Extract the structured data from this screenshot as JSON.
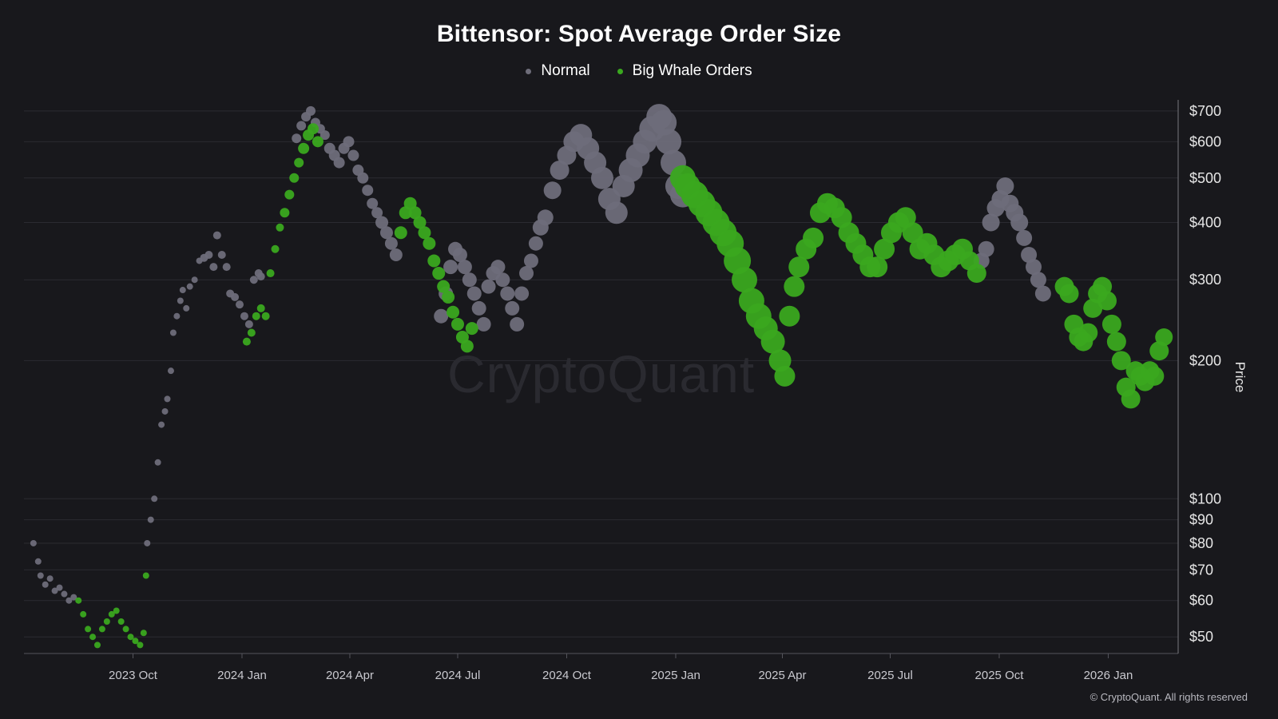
{
  "colors": {
    "background": "#18181c",
    "normal": "#6e6d7a",
    "whale": "#3aa81f",
    "grid": "#2b2b31",
    "axis_text": "#e6e6e6"
  },
  "watermark": "CryptoQuant",
  "copyright": "© CryptoQuant. All rights reserved",
  "chart_data": {
    "type": "scatter",
    "title": "Bittensor: Spot Average Order Size",
    "ylabel": "Price",
    "yscale": "log",
    "ylim": [
      46,
      740
    ],
    "legend": [
      {
        "name": "Normal",
        "color": "#6e6d7a"
      },
      {
        "name": "Big Whale Orders",
        "color": "#3aa81f"
      }
    ],
    "x_ticks": [
      {
        "label": "2023 Oct",
        "day": 92
      },
      {
        "label": "2024 Jan",
        "day": 184
      },
      {
        "label": "2024 Apr",
        "day": 275
      },
      {
        "label": "2024 Jul",
        "day": 366
      },
      {
        "label": "2024 Oct",
        "day": 458
      },
      {
        "label": "2025 Jan",
        "day": 550
      },
      {
        "label": "2025 Apr",
        "day": 640
      },
      {
        "label": "2025 Jul",
        "day": 731
      },
      {
        "label": "2025 Oct",
        "day": 823
      },
      {
        "label": "2026 Jan",
        "day": 915
      }
    ],
    "x_range_days": [
      0,
      974
    ],
    "y_ticks": [
      {
        "label": "$700",
        "value": 700
      },
      {
        "label": "$600",
        "value": 600
      },
      {
        "label": "$500",
        "value": 500
      },
      {
        "label": "$400",
        "value": 400
      },
      {
        "label": "$300",
        "value": 300
      },
      {
        "label": "$200",
        "value": 200
      },
      {
        "label": "$100",
        "value": 100
      },
      {
        "label": "$90",
        "value": 90
      },
      {
        "label": "$80",
        "value": 80
      },
      {
        "label": "$70",
        "value": 70
      },
      {
        "label": "$60",
        "value": 60
      },
      {
        "label": "$50",
        "value": 50
      }
    ],
    "series": [
      {
        "name": "Normal",
        "points": [
          [
            8,
            80,
            4
          ],
          [
            12,
            73,
            4
          ],
          [
            14,
            68,
            4
          ],
          [
            18,
            65,
            4
          ],
          [
            22,
            67,
            4
          ],
          [
            26,
            63,
            4
          ],
          [
            30,
            64,
            4
          ],
          [
            34,
            62,
            4
          ],
          [
            38,
            60,
            4
          ],
          [
            42,
            61,
            4
          ],
          [
            104,
            80,
            4
          ],
          [
            107,
            90,
            4
          ],
          [
            110,
            100,
            4
          ],
          [
            113,
            120,
            4
          ],
          [
            116,
            145,
            4
          ],
          [
            119,
            155,
            4
          ],
          [
            121,
            165,
            4
          ],
          [
            124,
            190,
            4
          ],
          [
            126,
            230,
            4
          ],
          [
            129,
            250,
            4
          ],
          [
            132,
            270,
            4
          ],
          [
            134,
            285,
            4
          ],
          [
            137,
            260,
            4
          ],
          [
            140,
            290,
            4
          ],
          [
            144,
            300,
            4
          ],
          [
            148,
            330,
            4
          ],
          [
            152,
            335,
            5
          ],
          [
            156,
            340,
            5
          ],
          [
            160,
            320,
            5
          ],
          [
            163,
            375,
            5
          ],
          [
            167,
            340,
            5
          ],
          [
            171,
            320,
            5
          ],
          [
            174,
            280,
            5
          ],
          [
            178,
            275,
            5
          ],
          [
            182,
            265,
            5
          ],
          [
            186,
            250,
            5
          ],
          [
            190,
            240,
            5
          ],
          [
            194,
            300,
            5
          ],
          [
            198,
            310,
            5
          ],
          [
            200,
            305,
            5
          ],
          [
            230,
            610,
            6
          ],
          [
            234,
            650,
            6
          ],
          [
            238,
            680,
            6
          ],
          [
            242,
            700,
            6
          ],
          [
            246,
            660,
            6
          ],
          [
            250,
            640,
            6
          ],
          [
            254,
            620,
            6
          ],
          [
            258,
            580,
            7
          ],
          [
            262,
            560,
            7
          ],
          [
            266,
            540,
            7
          ],
          [
            270,
            580,
            7
          ],
          [
            274,
            600,
            7
          ],
          [
            278,
            560,
            7
          ],
          [
            282,
            520,
            7
          ],
          [
            286,
            500,
            7
          ],
          [
            290,
            470,
            7
          ],
          [
            294,
            440,
            7
          ],
          [
            298,
            420,
            7
          ],
          [
            302,
            400,
            8
          ],
          [
            306,
            380,
            8
          ],
          [
            310,
            360,
            8
          ],
          [
            314,
            340,
            8
          ],
          [
            352,
            250,
            9
          ],
          [
            356,
            280,
            9
          ],
          [
            360,
            320,
            9
          ],
          [
            364,
            350,
            9
          ],
          [
            368,
            340,
            9
          ],
          [
            372,
            320,
            9
          ],
          [
            376,
            300,
            9
          ],
          [
            380,
            280,
            9
          ],
          [
            384,
            260,
            9
          ],
          [
            388,
            240,
            9
          ],
          [
            392,
            290,
            9
          ],
          [
            396,
            310,
            9
          ],
          [
            400,
            320,
            9
          ],
          [
            404,
            300,
            9
          ],
          [
            408,
            280,
            9
          ],
          [
            412,
            260,
            9
          ],
          [
            416,
            240,
            9
          ],
          [
            420,
            280,
            9
          ],
          [
            424,
            310,
            9
          ],
          [
            428,
            330,
            9
          ],
          [
            432,
            360,
            9
          ],
          [
            436,
            390,
            10
          ],
          [
            440,
            410,
            10
          ],
          [
            446,
            470,
            11
          ],
          [
            452,
            520,
            12
          ],
          [
            458,
            560,
            12
          ],
          [
            464,
            600,
            13
          ],
          [
            470,
            620,
            14
          ],
          [
            476,
            580,
            14
          ],
          [
            482,
            540,
            14
          ],
          [
            488,
            500,
            14
          ],
          [
            494,
            450,
            14
          ],
          [
            500,
            420,
            14
          ],
          [
            506,
            480,
            14
          ],
          [
            512,
            520,
            15
          ],
          [
            518,
            560,
            15
          ],
          [
            524,
            600,
            15
          ],
          [
            530,
            640,
            16
          ],
          [
            536,
            680,
            16
          ],
          [
            540,
            660,
            16
          ],
          [
            544,
            600,
            16
          ],
          [
            548,
            540,
            16
          ],
          [
            552,
            480,
            16
          ],
          [
            556,
            460,
            16
          ],
          [
            808,
            330,
            10
          ],
          [
            812,
            350,
            10
          ],
          [
            816,
            400,
            11
          ],
          [
            820,
            430,
            11
          ],
          [
            824,
            450,
            11
          ],
          [
            828,
            480,
            11
          ],
          [
            832,
            440,
            11
          ],
          [
            836,
            420,
            11
          ],
          [
            840,
            400,
            11
          ],
          [
            844,
            370,
            10
          ],
          [
            848,
            340,
            10
          ],
          [
            852,
            320,
            10
          ],
          [
            856,
            300,
            10
          ],
          [
            860,
            280,
            10
          ]
        ]
      },
      {
        "name": "Big Whale Orders",
        "points": [
          [
            46,
            60,
            4
          ],
          [
            50,
            56,
            4
          ],
          [
            54,
            52,
            4
          ],
          [
            58,
            50,
            4
          ],
          [
            62,
            48,
            4
          ],
          [
            66,
            52,
            4
          ],
          [
            70,
            54,
            4
          ],
          [
            74,
            56,
            4
          ],
          [
            78,
            57,
            4
          ],
          [
            82,
            54,
            4
          ],
          [
            86,
            52,
            4
          ],
          [
            90,
            50,
            4
          ],
          [
            94,
            49,
            4
          ],
          [
            98,
            48,
            4
          ],
          [
            101,
            51,
            4
          ],
          [
            103,
            68,
            4
          ],
          [
            188,
            220,
            5
          ],
          [
            192,
            230,
            5
          ],
          [
            196,
            250,
            5
          ],
          [
            200,
            260,
            5
          ],
          [
            204,
            250,
            5
          ],
          [
            208,
            310,
            5
          ],
          [
            212,
            350,
            5
          ],
          [
            216,
            390,
            5
          ],
          [
            220,
            420,
            6
          ],
          [
            224,
            460,
            6
          ],
          [
            228,
            500,
            6
          ],
          [
            232,
            540,
            6
          ],
          [
            236,
            580,
            7
          ],
          [
            240,
            620,
            7
          ],
          [
            244,
            640,
            7
          ],
          [
            248,
            600,
            7
          ],
          [
            318,
            380,
            8
          ],
          [
            322,
            420,
            8
          ],
          [
            326,
            440,
            8
          ],
          [
            330,
            420,
            8
          ],
          [
            334,
            400,
            8
          ],
          [
            338,
            380,
            8
          ],
          [
            342,
            360,
            8
          ],
          [
            346,
            330,
            8
          ],
          [
            350,
            310,
            8
          ],
          [
            354,
            290,
            8
          ],
          [
            358,
            275,
            8
          ],
          [
            362,
            255,
            8
          ],
          [
            366,
            240,
            8
          ],
          [
            370,
            225,
            8
          ],
          [
            374,
            215,
            8
          ],
          [
            378,
            235,
            8
          ],
          [
            556,
            500,
            16
          ],
          [
            560,
            480,
            16
          ],
          [
            566,
            460,
            17
          ],
          [
            572,
            440,
            17
          ],
          [
            578,
            420,
            17
          ],
          [
            584,
            400,
            17
          ],
          [
            590,
            380,
            17
          ],
          [
            596,
            360,
            17
          ],
          [
            602,
            330,
            17
          ],
          [
            608,
            300,
            16
          ],
          [
            614,
            270,
            16
          ],
          [
            620,
            250,
            16
          ],
          [
            626,
            235,
            15
          ],
          [
            632,
            220,
            15
          ],
          [
            638,
            200,
            14
          ],
          [
            642,
            185,
            13
          ],
          [
            646,
            250,
            13
          ],
          [
            650,
            290,
            13
          ],
          [
            654,
            320,
            13
          ],
          [
            660,
            350,
            13
          ],
          [
            666,
            370,
            13
          ],
          [
            672,
            420,
            13
          ],
          [
            678,
            440,
            13
          ],
          [
            684,
            430,
            13
          ],
          [
            690,
            410,
            13
          ],
          [
            696,
            380,
            13
          ],
          [
            702,
            360,
            13
          ],
          [
            708,
            340,
            13
          ],
          [
            714,
            320,
            13
          ],
          [
            720,
            320,
            13
          ],
          [
            726,
            350,
            13
          ],
          [
            732,
            380,
            13
          ],
          [
            738,
            400,
            13
          ],
          [
            744,
            410,
            13
          ],
          [
            750,
            380,
            13
          ],
          [
            756,
            350,
            13
          ],
          [
            762,
            360,
            13
          ],
          [
            768,
            340,
            13
          ],
          [
            774,
            320,
            13
          ],
          [
            780,
            330,
            13
          ],
          [
            786,
            340,
            13
          ],
          [
            792,
            350,
            13
          ],
          [
            798,
            330,
            12
          ],
          [
            804,
            310,
            12
          ],
          [
            878,
            290,
            12
          ],
          [
            882,
            280,
            12
          ],
          [
            886,
            240,
            12
          ],
          [
            890,
            225,
            12
          ],
          [
            894,
            220,
            12
          ],
          [
            898,
            230,
            12
          ],
          [
            902,
            260,
            12
          ],
          [
            906,
            280,
            12
          ],
          [
            910,
            290,
            12
          ],
          [
            914,
            270,
            12
          ],
          [
            918,
            240,
            12
          ],
          [
            922,
            220,
            12
          ],
          [
            926,
            200,
            12
          ],
          [
            930,
            175,
            12
          ],
          [
            934,
            165,
            12
          ],
          [
            938,
            190,
            12
          ],
          [
            942,
            185,
            12
          ],
          [
            946,
            180,
            12
          ],
          [
            950,
            190,
            12
          ],
          [
            954,
            185,
            12
          ],
          [
            958,
            210,
            12
          ],
          [
            962,
            225,
            11
          ]
        ]
      }
    ]
  }
}
